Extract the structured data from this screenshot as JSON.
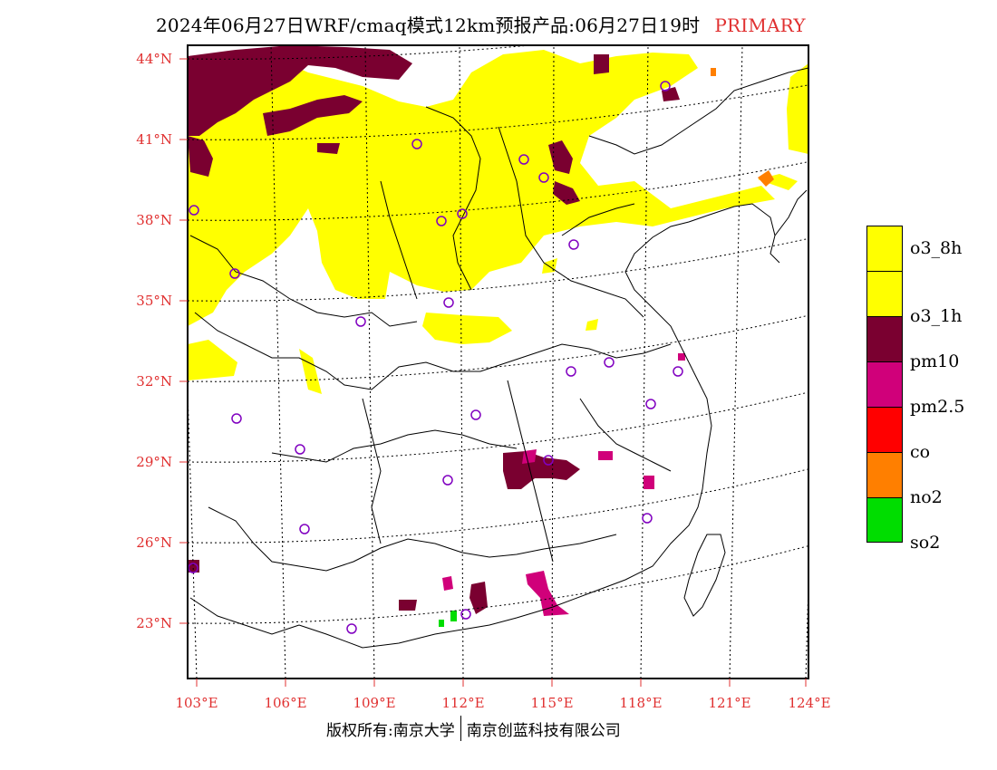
{
  "title": {
    "main": "2024年06月27日WRF/cmaq模式12km预报产品:06月27日19时",
    "tag": "PRIMARY"
  },
  "lat_labels": [
    "44°N",
    "41°N",
    "38°N",
    "35°N",
    "32°N",
    "29°N",
    "26°N",
    "23°N"
  ],
  "lon_labels": [
    "103°E",
    "106°E",
    "109°E",
    "112°E",
    "115°E",
    "118°E",
    "121°E",
    "124°E"
  ],
  "legend": [
    {
      "label": "o3_8h",
      "color": "#ffff00"
    },
    {
      "label": "o3_1h",
      "color": "#ffff00"
    },
    {
      "label": "pm10",
      "color": "#7a0030"
    },
    {
      "label": "pm2.5",
      "color": "#d0007a"
    },
    {
      "label": "co",
      "color": "#ff0000"
    },
    {
      "label": "no2",
      "color": "#ff7f00"
    },
    {
      "label": "so2",
      "color": "#00dd00"
    }
  ],
  "colors": {
    "label_red": "#e03030",
    "station_circle": "#8000c0",
    "o3": "#ffff00",
    "pm10": "#7a0030",
    "pm25": "#d0007a",
    "no2": "#ff7f00",
    "so2": "#00dd00"
  },
  "footer": {
    "left": "版权所有:南京大学",
    "right": "南京创蓝科技有限公司"
  }
}
